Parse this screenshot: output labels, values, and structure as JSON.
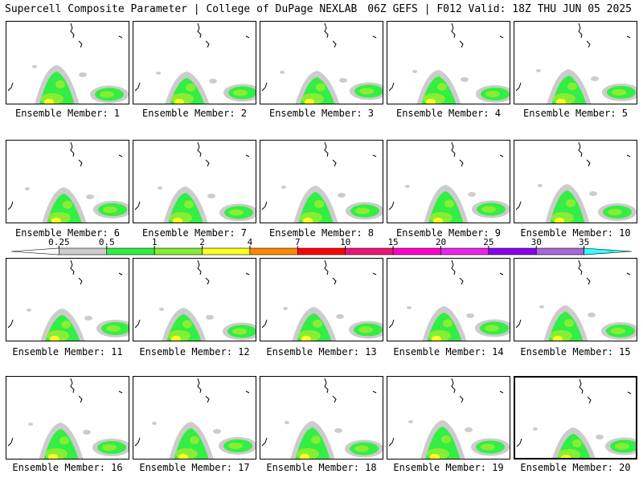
{
  "header": {
    "left": "Supercell Composite Parameter | College of DuPage NEXLAB",
    "right": "06Z GEFS | F012 Valid: 18Z THU JUN 05 2025"
  },
  "panels": [
    {
      "label": "Ensemble Member: 1"
    },
    {
      "label": "Ensemble Member: 2"
    },
    {
      "label": "Ensemble Member: 3"
    },
    {
      "label": "Ensemble Member: 4"
    },
    {
      "label": "Ensemble Member: 5"
    },
    {
      "label": "Ensemble Member: 6"
    },
    {
      "label": "Ensemble Member: 7"
    },
    {
      "label": "Ensemble Member: 8"
    },
    {
      "label": "Ensemble Member: 9"
    },
    {
      "label": "Ensemble Member: 10"
    },
    {
      "label": "Ensemble Member: 11"
    },
    {
      "label": "Ensemble Member: 12"
    },
    {
      "label": "Ensemble Member: 13"
    },
    {
      "label": "Ensemble Member: 14"
    },
    {
      "label": "Ensemble Member: 15"
    },
    {
      "label": "Ensemble Member: 16"
    },
    {
      "label": "Ensemble Member: 17"
    },
    {
      "label": "Ensemble Member: 18"
    },
    {
      "label": "Ensemble Member: 19"
    },
    {
      "label": "Ensemble Member: 20"
    }
  ],
  "selected_member": 20,
  "colorbar": {
    "labels": [
      "0.25",
      "0.5",
      "1",
      "2",
      "4",
      "7",
      "10",
      "15",
      "20",
      "25",
      "30",
      "35"
    ],
    "colors": [
      "#ffffff",
      "#cccccc",
      "#33ee44",
      "#88ee33",
      "#ffff22",
      "#ff8800",
      "#ff0000",
      "#ee1177",
      "#ff00cc",
      "#ee22ee",
      "#8800ee",
      "#aa66dd",
      "#33ffff"
    ]
  },
  "map_colors": {
    "low": "#cccccc",
    "green": "#33ee44",
    "lightgreen": "#88ee33",
    "yellow": "#ffff22"
  }
}
